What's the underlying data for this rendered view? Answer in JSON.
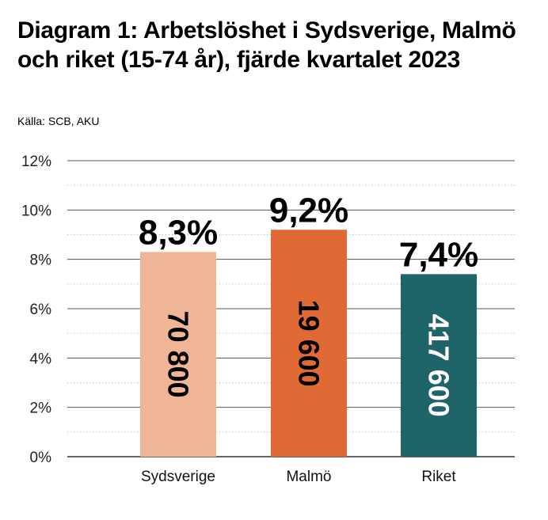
{
  "chart_data": {
    "type": "bar",
    "title": "Diagram 1: Arbetslöshet i Sydsverige, Malmö och riket (15-74 år), fjärde kvartalet 2023",
    "source": "Källa: SCB, AKU",
    "categories": [
      "Sydsverige",
      "Malmö",
      "Riket"
    ],
    "values": [
      8.3,
      9.2,
      7.4
    ],
    "value_labels": [
      "8,3%",
      "9,2%",
      "7,4%"
    ],
    "count_labels": [
      "70 800",
      "19 600",
      "417 600"
    ],
    "colors": [
      "#F0B497",
      "#E06A36",
      "#1E6469"
    ],
    "inner_text_colors": [
      "#000000",
      "#000000",
      "#FFFFFF"
    ],
    "ylim": [
      0,
      12
    ],
    "yticks": [
      0,
      2,
      4,
      6,
      8,
      10,
      12
    ],
    "ytick_labels": [
      "0%",
      "2%",
      "4%",
      "6%",
      "8%",
      "10%",
      "12%"
    ],
    "minor_grid": [
      1,
      3,
      5,
      7,
      9,
      11
    ],
    "xlabel": "",
    "ylabel": "",
    "grid": true
  }
}
